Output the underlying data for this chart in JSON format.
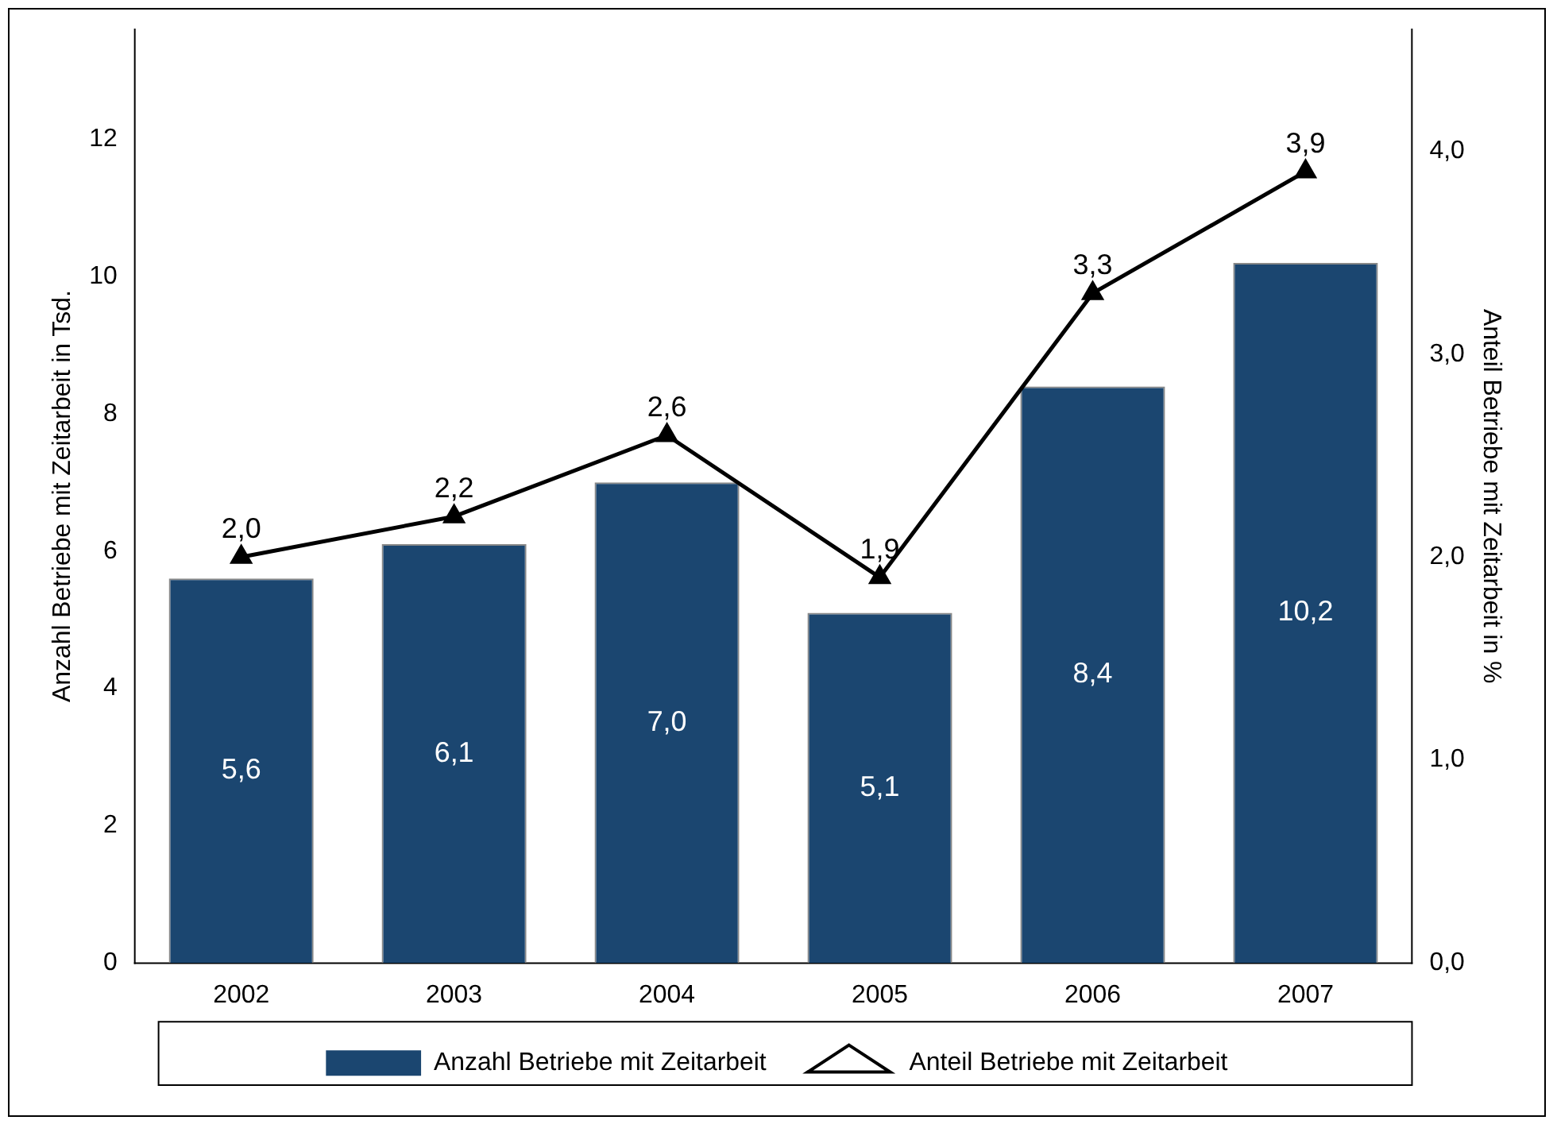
{
  "chart_data": {
    "type": "bar",
    "categories": [
      "2002",
      "2003",
      "2004",
      "2005",
      "2006",
      "2007"
    ],
    "ylabel": "Anzahl Betriebe mit Zeitarbeit in Tsd.",
    "y2label": "Anteil Betriebe mit Zeitarbeit in %",
    "ylim": [
      0,
      13.6
    ],
    "yticks": [
      0,
      2,
      4,
      6,
      8,
      10,
      12
    ],
    "y2lim": [
      0,
      4.6
    ],
    "y2ticks": [
      {
        "value": 0,
        "label": "0,0"
      },
      {
        "value": 1,
        "label": "1,0"
      },
      {
        "value": 2,
        "label": "2,0"
      },
      {
        "value": 3,
        "label": "3,0"
      },
      {
        "value": 4,
        "label": "4,0"
      }
    ],
    "series": [
      {
        "name": "Anzahl Betriebe mit Zeitarbeit",
        "color": "#1b4670",
        "values": [
          5.6,
          6.1,
          7.0,
          5.1,
          8.4,
          10.2
        ],
        "value_labels": [
          "5,6",
          "6,1",
          "7,0",
          "5,1",
          "8,4",
          "10,2"
        ]
      },
      {
        "name": "Anteil Betriebe mit Zeitarbeit",
        "type": "line",
        "axis": "y2",
        "color": "#000000",
        "marker": "triangle",
        "values": [
          2.0,
          2.2,
          2.6,
          1.9,
          3.3,
          3.9
        ],
        "value_labels": [
          "2,0",
          "2,2",
          "2,6",
          "1,9",
          "3,3",
          "3,9"
        ]
      }
    ],
    "grid": false,
    "legend": "bottom"
  }
}
